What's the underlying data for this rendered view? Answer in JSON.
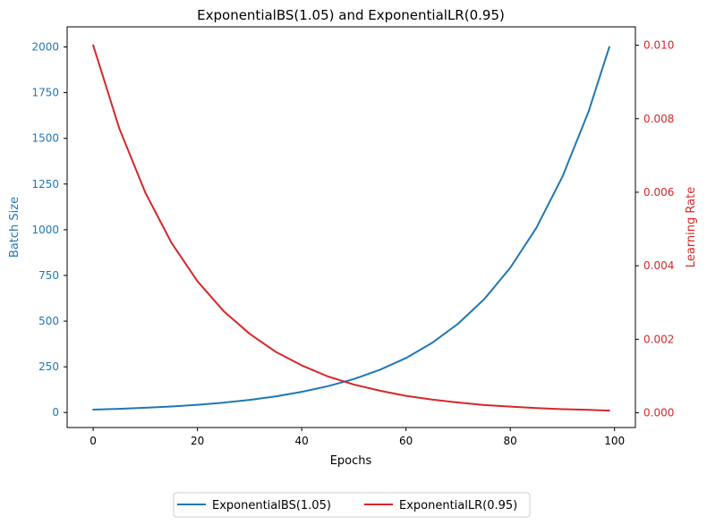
{
  "chart_data": {
    "type": "line",
    "title": "ExponentialBS(1.05) and ExponentialLR(0.95)",
    "xlabel": "Epochs",
    "ylabel_left": "Batch Size",
    "ylabel_right": "Learning Rate",
    "xlim": [
      -5,
      104
    ],
    "ylim_left": [
      -82,
      2110
    ],
    "ylim_right": [
      -0.0004,
      0.0105
    ],
    "x_ticks": [
      "0",
      "20",
      "40",
      "60",
      "80",
      "100"
    ],
    "y_left_ticks": [
      "0",
      "250",
      "500",
      "750",
      "1000",
      "1250",
      "1500",
      "1750",
      "2000"
    ],
    "y_right_ticks": [
      "0.000",
      "0.002",
      "0.004",
      "0.006",
      "0.008",
      "0.010"
    ],
    "grid": false,
    "legend_placement": "bottom-center",
    "series": [
      {
        "name": "ExponentialBS(1.05)",
        "axis": "left",
        "color": "#1f77b4",
        "x": [
          0,
          5,
          10,
          15,
          20,
          25,
          30,
          35,
          40,
          45,
          50,
          55,
          60,
          65,
          70,
          75,
          80,
          85,
          90,
          95,
          99
        ],
        "values": [
          16,
          20,
          26,
          33,
          42,
          54,
          69,
          88,
          113,
          144,
          183,
          234,
          298,
          381,
          486,
          620,
          792,
          1010,
          1290,
          1645,
          2000
        ]
      },
      {
        "name": "ExponentialLR(0.95)",
        "axis": "right",
        "color": "#d62728",
        "x": [
          0,
          5,
          10,
          15,
          20,
          25,
          30,
          35,
          40,
          45,
          50,
          55,
          60,
          65,
          70,
          75,
          80,
          85,
          90,
          95,
          99
        ],
        "values": [
          0.01,
          0.00774,
          0.00599,
          0.00463,
          0.00358,
          0.00277,
          0.00215,
          0.00166,
          0.00129,
          0.00099,
          0.00077,
          0.0006,
          0.00046,
          0.00036,
          0.00028,
          0.00021,
          0.00017,
          0.00013,
          0.0001,
          8e-05,
          6e-05
        ]
      }
    ]
  }
}
